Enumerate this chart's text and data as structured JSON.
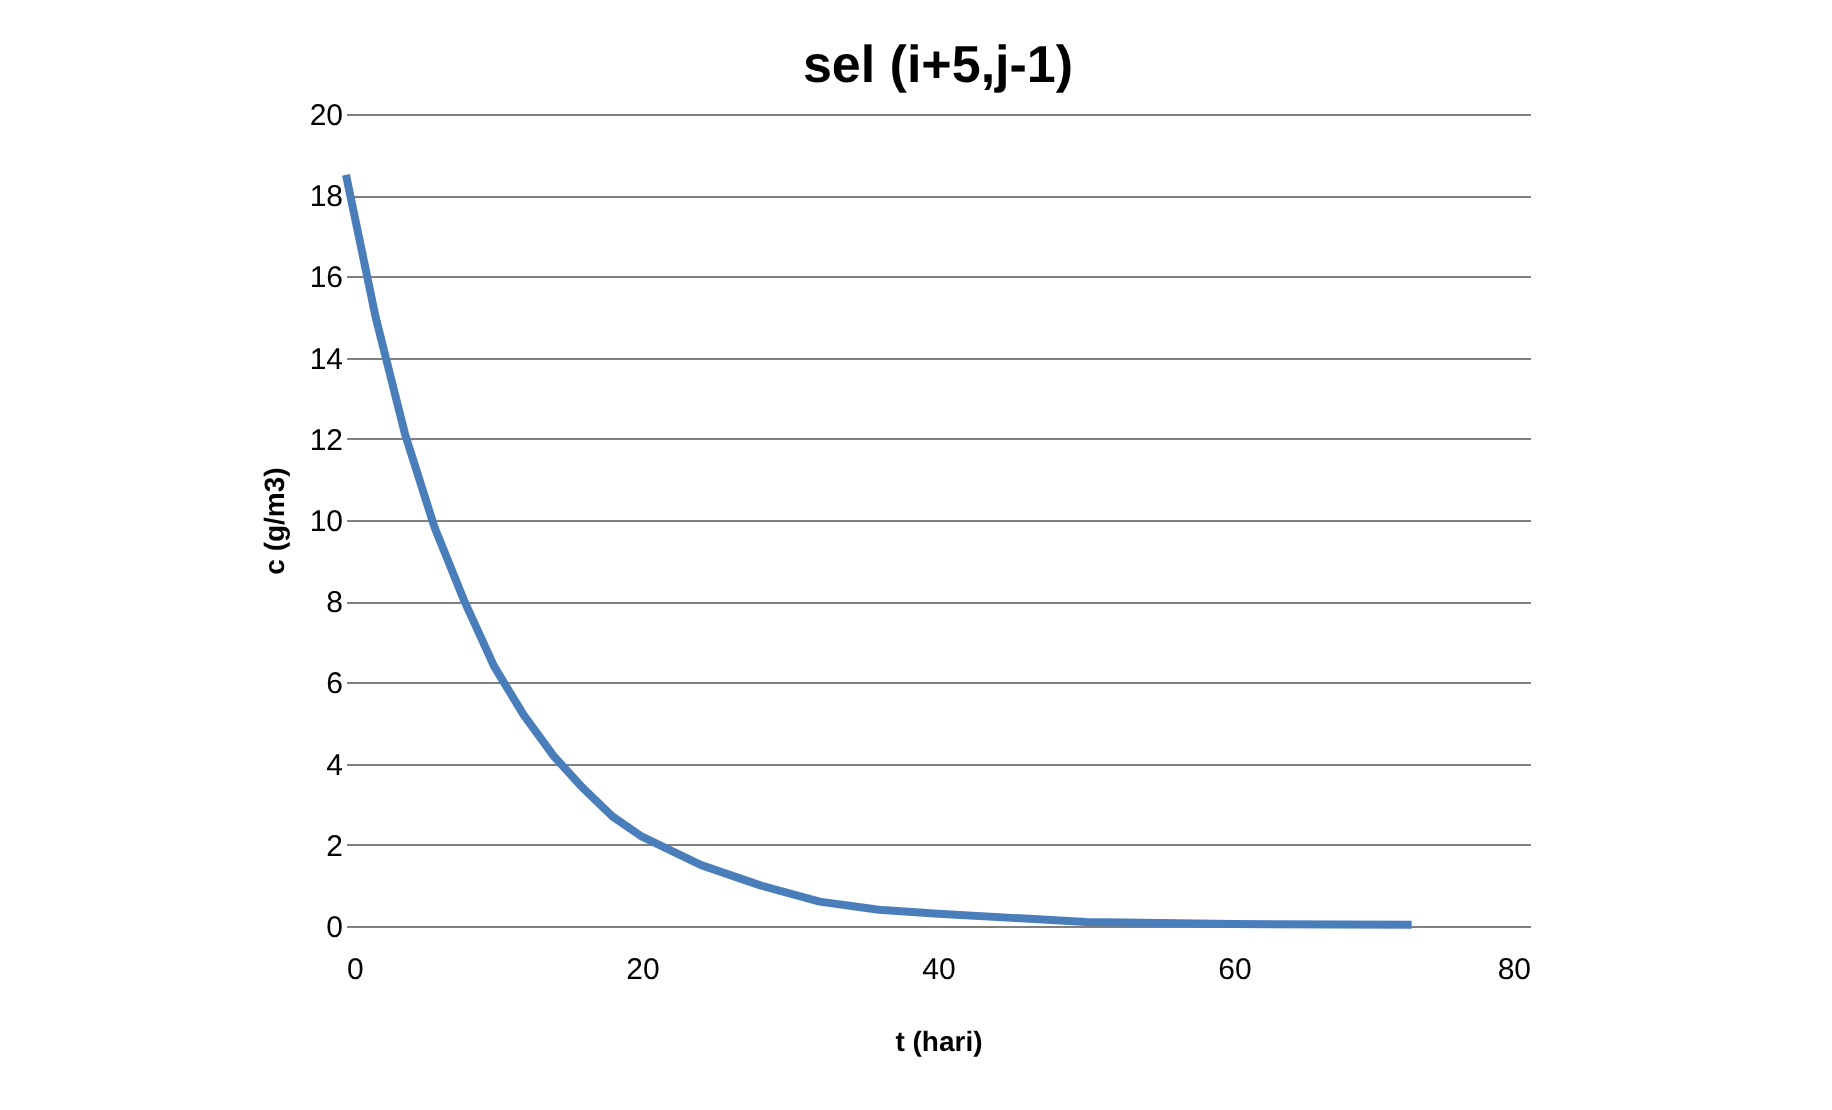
{
  "chart_data": {
    "type": "line",
    "title": "sel (i+5,j-1)",
    "xlabel": "t (hari)",
    "ylabel": "c (g/m3)",
    "x": [
      0,
      2,
      4,
      6,
      8,
      10,
      12,
      14,
      16,
      18,
      20,
      24,
      28,
      32,
      36,
      40,
      45,
      50,
      60,
      72
    ],
    "series": [
      {
        "color": "#4a7ebb",
        "values": [
          18.5,
          15.0,
          12.1,
          9.8,
          8.0,
          6.4,
          5.2,
          4.2,
          3.4,
          2.7,
          2.2,
          1.5,
          1.0,
          0.6,
          0.4,
          0.3,
          0.2,
          0.1,
          0.05,
          0.03
        ]
      }
    ],
    "xlim": [
      0,
      80
    ],
    "xticks": [
      0,
      20,
      40,
      60,
      80
    ],
    "ylim": [
      0,
      20
    ],
    "yticks": [
      0,
      2,
      4,
      6,
      8,
      10,
      12,
      14,
      16,
      18,
      20
    ],
    "grid": "y",
    "marker": "none",
    "line_style": "solid"
  }
}
